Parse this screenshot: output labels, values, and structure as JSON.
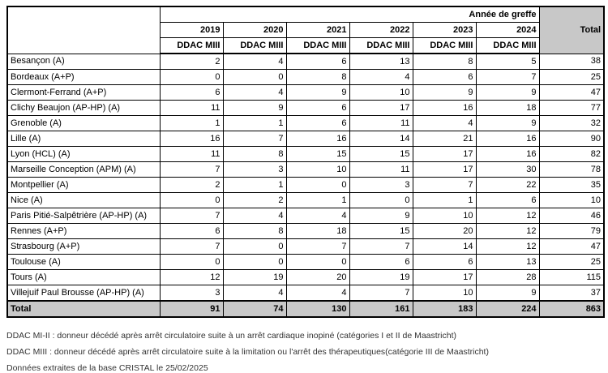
{
  "colors": {
    "header_gray": "#C8C8C8",
    "border": "#000000"
  },
  "table": {
    "corner_label": "",
    "group_header": "Année de greffe",
    "total_col_header": "Total",
    "years": [
      "2019",
      "2020",
      "2021",
      "2022",
      "2023",
      "2024"
    ],
    "sub_header": "DDAC MIII",
    "rows": [
      {
        "label": "Besançon (A)",
        "values": [
          2,
          4,
          6,
          13,
          8,
          5
        ],
        "total": 38
      },
      {
        "label": "Bordeaux (A+P)",
        "values": [
          0,
          0,
          8,
          4,
          6,
          7
        ],
        "total": 25
      },
      {
        "label": "Clermont-Ferrand (A+P)",
        "values": [
          6,
          4,
          9,
          10,
          9,
          9
        ],
        "total": 47
      },
      {
        "label": "Clichy Beaujon (AP-HP) (A)",
        "values": [
          11,
          9,
          6,
          17,
          16,
          18
        ],
        "total": 77
      },
      {
        "label": "Grenoble (A)",
        "values": [
          1,
          1,
          6,
          11,
          4,
          9
        ],
        "total": 32
      },
      {
        "label": "Lille (A)",
        "values": [
          16,
          7,
          16,
          14,
          21,
          16
        ],
        "total": 90
      },
      {
        "label": "Lyon (HCL) (A)",
        "values": [
          11,
          8,
          15,
          15,
          17,
          16
        ],
        "total": 82
      },
      {
        "label": "Marseille Conception (APM) (A)",
        "values": [
          7,
          3,
          10,
          11,
          17,
          30
        ],
        "total": 78
      },
      {
        "label": "Montpellier (A)",
        "values": [
          2,
          1,
          0,
          3,
          7,
          22
        ],
        "total": 35
      },
      {
        "label": "Nice (A)",
        "values": [
          0,
          2,
          1,
          0,
          1,
          6
        ],
        "total": 10
      },
      {
        "label": "Paris Pitié-Salpêtrière (AP-HP) (A)",
        "values": [
          7,
          4,
          4,
          9,
          10,
          12
        ],
        "total": 46
      },
      {
        "label": "Rennes (A+P)",
        "values": [
          6,
          8,
          18,
          15,
          20,
          12
        ],
        "total": 79
      },
      {
        "label": "Strasbourg (A+P)",
        "values": [
          7,
          0,
          7,
          7,
          14,
          12
        ],
        "total": 47
      },
      {
        "label": "Toulouse (A)",
        "values": [
          0,
          0,
          0,
          6,
          6,
          13
        ],
        "total": 25
      },
      {
        "label": "Tours (A)",
        "values": [
          12,
          19,
          20,
          19,
          17,
          28
        ],
        "total": 115
      },
      {
        "label": "Villejuif Paul Brousse (AP-HP) (A)",
        "values": [
          3,
          4,
          4,
          7,
          10,
          9
        ],
        "total": 37
      }
    ],
    "total_row": {
      "label": "Total",
      "values": [
        91,
        74,
        130,
        161,
        183,
        224
      ],
      "total": 863
    }
  },
  "footnotes": [
    "DDAC MI-II : donneur décédé après arrêt circulatoire suite à un arrêt cardiaque inopiné (catégories I et II de Maastricht)",
    "DDAC MIII : donneur décédé après arrêt circulatoire suite à la limitation ou l'arrêt des thérapeutiques(catégorie III de Maastricht)",
    "Données extraites de la base CRISTAL le 25/02/2025"
  ]
}
